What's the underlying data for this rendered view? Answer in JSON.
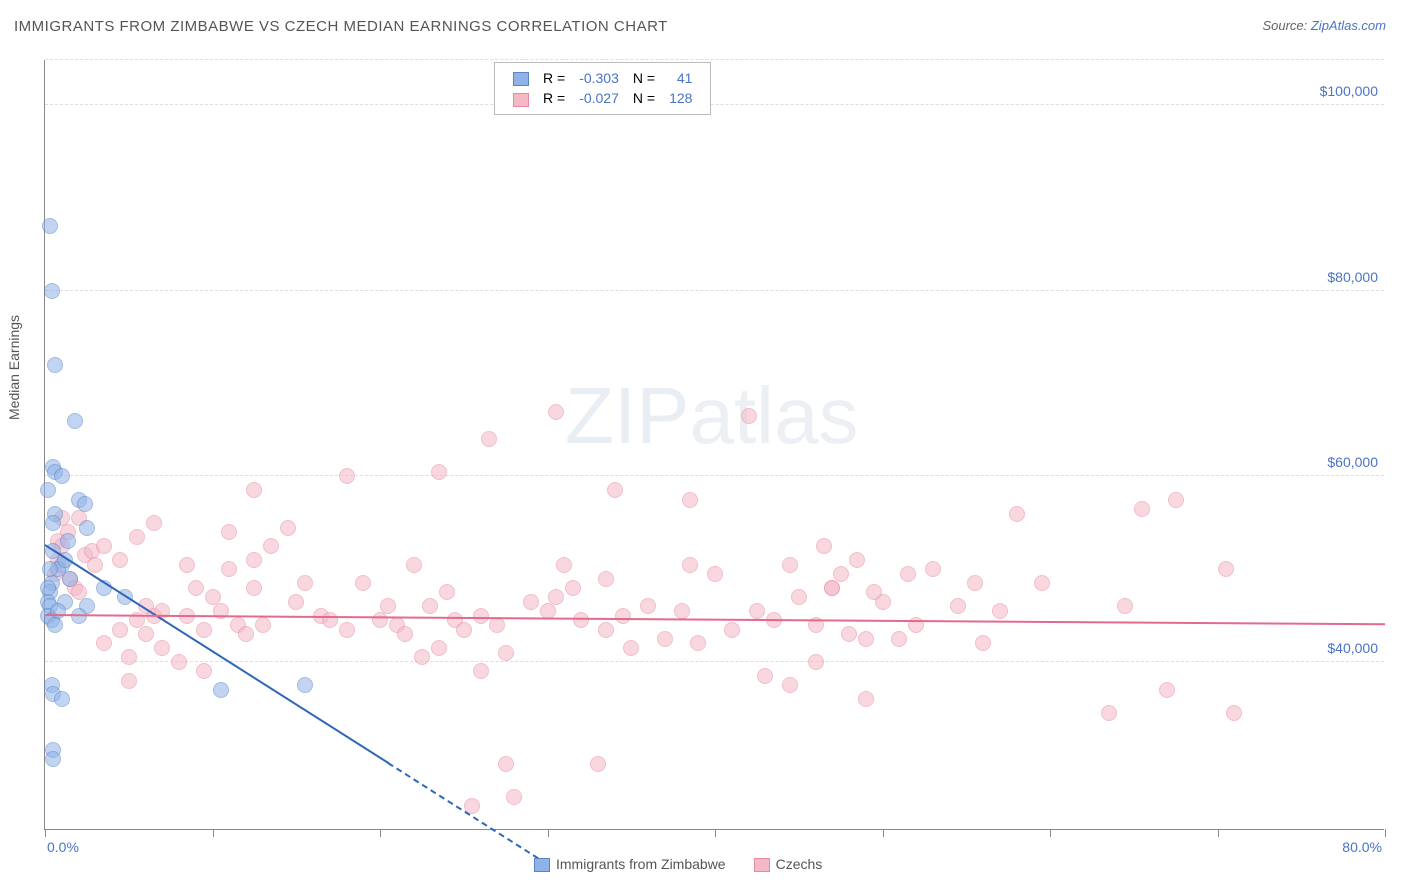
{
  "title": "IMMIGRANTS FROM ZIMBABWE VS CZECH MEDIAN EARNINGS CORRELATION CHART",
  "source_label": "Source: ",
  "source_name": "ZipAtlas.com",
  "watermark_a": "ZIP",
  "watermark_b": "atlas",
  "y_axis_title": "Median Earnings",
  "chart": {
    "type": "scatter",
    "x_range": [
      0,
      80
    ],
    "y_range": [
      22000,
      105000
    ],
    "x_ticks": [
      0,
      10,
      20,
      30,
      40,
      50,
      60,
      70,
      80
    ],
    "x_tick_labels": {
      "0": "0.0%",
      "80": "80.0%"
    },
    "y_gridlines": [
      40000,
      60000,
      80000,
      100000
    ],
    "y_tick_labels": {
      "40000": "$40,000",
      "60000": "$60,000",
      "80000": "$80,000",
      "100000": "$100,000"
    },
    "background": "#ffffff",
    "grid_color": "#dddddd",
    "point_radius": 8,
    "point_opacity": 0.55,
    "series": [
      {
        "name": "Immigrants from Zimbabwe",
        "fill": "#8fb3e8",
        "stroke": "#5a84c4",
        "line_color": "#2f66b8",
        "R": "-0.303",
        "N": "41",
        "trend": {
          "x1": 0,
          "y1": 52500,
          "x2": 20.5,
          "y2": 29000,
          "dash_to_x": 30
        },
        "points": [
          [
            0.3,
            87000
          ],
          [
            0.4,
            80000
          ],
          [
            0.6,
            72000
          ],
          [
            1.8,
            66000
          ],
          [
            0.5,
            61000
          ],
          [
            0.6,
            60500
          ],
          [
            1.0,
            60000
          ],
          [
            2.0,
            57500
          ],
          [
            2.4,
            57000
          ],
          [
            0.6,
            56000
          ],
          [
            2.5,
            54500
          ],
          [
            0.5,
            55000
          ],
          [
            0.5,
            52000
          ],
          [
            1.0,
            50500
          ],
          [
            1.4,
            53000
          ],
          [
            0.8,
            50000
          ],
          [
            0.4,
            48500
          ],
          [
            0.3,
            47500
          ],
          [
            0.2,
            46500
          ],
          [
            1.2,
            46500
          ],
          [
            2.5,
            46000
          ],
          [
            0.3,
            46000
          ],
          [
            0.2,
            45000
          ],
          [
            0.4,
            44500
          ],
          [
            0.8,
            45500
          ],
          [
            0.6,
            44000
          ],
          [
            2.0,
            45000
          ],
          [
            3.5,
            48000
          ],
          [
            4.8,
            47000
          ],
          [
            0.4,
            37500
          ],
          [
            0.5,
            36500
          ],
          [
            0.5,
            30500
          ],
          [
            0.5,
            29500
          ],
          [
            10.5,
            37000
          ],
          [
            15.5,
            37500
          ],
          [
            1.0,
            36000
          ],
          [
            1.2,
            51000
          ],
          [
            1.5,
            49000
          ],
          [
            0.2,
            58500
          ],
          [
            0.2,
            48000
          ],
          [
            0.3,
            50000
          ]
        ]
      },
      {
        "name": "Czechs",
        "fill": "#f4b8c6",
        "stroke": "#e78aa1",
        "line_color": "#e46a8c",
        "R": "-0.027",
        "N": "128",
        "trend": {
          "x1": 0,
          "y1": 45000,
          "x2": 80,
          "y2": 44000
        },
        "points": [
          [
            30.5,
            67000
          ],
          [
            26.5,
            64000
          ],
          [
            42.0,
            66500
          ],
          [
            23.5,
            60500
          ],
          [
            18.0,
            60000
          ],
          [
            12.5,
            58500
          ],
          [
            34.0,
            58500
          ],
          [
            38.5,
            57500
          ],
          [
            67.5,
            57500
          ],
          [
            65.5,
            56500
          ],
          [
            58.0,
            56000
          ],
          [
            1.0,
            55500
          ],
          [
            1.4,
            54000
          ],
          [
            0.8,
            53000
          ],
          [
            1.0,
            52500
          ],
          [
            2.0,
            55500
          ],
          [
            2.4,
            51500
          ],
          [
            0.8,
            51000
          ],
          [
            0.6,
            49500
          ],
          [
            1.5,
            49000
          ],
          [
            1.8,
            48000
          ],
          [
            2.0,
            47500
          ],
          [
            2.8,
            52000
          ],
          [
            3.0,
            50500
          ],
          [
            3.5,
            52500
          ],
          [
            4.5,
            51000
          ],
          [
            5.5,
            53500
          ],
          [
            6.5,
            55000
          ],
          [
            8.5,
            50500
          ],
          [
            9.0,
            48000
          ],
          [
            6.0,
            46000
          ],
          [
            6.5,
            45000
          ],
          [
            7.0,
            45500
          ],
          [
            8.5,
            45000
          ],
          [
            5.5,
            44500
          ],
          [
            5.0,
            40500
          ],
          [
            6.0,
            43000
          ],
          [
            4.5,
            43500
          ],
          [
            3.5,
            42000
          ],
          [
            7.0,
            41500
          ],
          [
            8.0,
            40000
          ],
          [
            11.0,
            50000
          ],
          [
            12.5,
            51000
          ],
          [
            13.5,
            52500
          ],
          [
            14.5,
            54500
          ],
          [
            15.0,
            46500
          ],
          [
            15.5,
            48500
          ],
          [
            16.5,
            45000
          ],
          [
            17.0,
            44500
          ],
          [
            12.5,
            48000
          ],
          [
            13.0,
            44000
          ],
          [
            9.5,
            43500
          ],
          [
            10.0,
            47000
          ],
          [
            10.5,
            45500
          ],
          [
            11.5,
            44000
          ],
          [
            12.0,
            43000
          ],
          [
            18.0,
            43500
          ],
          [
            19.0,
            48500
          ],
          [
            20.0,
            44500
          ],
          [
            20.5,
            46000
          ],
          [
            21.0,
            44000
          ],
          [
            21.5,
            43000
          ],
          [
            22.0,
            50500
          ],
          [
            23.0,
            46000
          ],
          [
            24.0,
            47500
          ],
          [
            24.5,
            44500
          ],
          [
            25.0,
            43500
          ],
          [
            26.0,
            45000
          ],
          [
            27.0,
            44000
          ],
          [
            27.5,
            41000
          ],
          [
            22.5,
            40500
          ],
          [
            23.5,
            41500
          ],
          [
            26.0,
            39000
          ],
          [
            29.0,
            46500
          ],
          [
            30.0,
            45500
          ],
          [
            30.5,
            47000
          ],
          [
            31.5,
            48000
          ],
          [
            32.0,
            44500
          ],
          [
            33.5,
            43500
          ],
          [
            34.5,
            45000
          ],
          [
            35.0,
            41500
          ],
          [
            36.0,
            46000
          ],
          [
            37.0,
            42500
          ],
          [
            38.0,
            45500
          ],
          [
            39.0,
            42000
          ],
          [
            40.0,
            49500
          ],
          [
            41.0,
            43500
          ],
          [
            42.5,
            45500
          ],
          [
            43.0,
            38500
          ],
          [
            43.5,
            44500
          ],
          [
            44.5,
            37500
          ],
          [
            45.0,
            47000
          ],
          [
            46.0,
            40000
          ],
          [
            47.0,
            48000
          ],
          [
            48.0,
            43000
          ],
          [
            48.5,
            51000
          ],
          [
            49.0,
            36000
          ],
          [
            50.0,
            46500
          ],
          [
            51.0,
            42500
          ],
          [
            52.0,
            44000
          ],
          [
            53.0,
            50000
          ],
          [
            54.5,
            46000
          ],
          [
            55.5,
            48500
          ],
          [
            56.0,
            42000
          ],
          [
            57.0,
            45500
          ],
          [
            59.5,
            48500
          ],
          [
            63.5,
            34500
          ],
          [
            64.5,
            46000
          ],
          [
            67.0,
            37000
          ],
          [
            70.5,
            50000
          ],
          [
            71.0,
            34500
          ],
          [
            25.5,
            24500
          ],
          [
            28.0,
            25500
          ],
          [
            27.5,
            29000
          ],
          [
            33.0,
            29000
          ],
          [
            5.0,
            38000
          ],
          [
            9.5,
            39000
          ],
          [
            47.0,
            48000
          ],
          [
            51.5,
            49500
          ],
          [
            47.5,
            49500
          ],
          [
            49.0,
            42500
          ],
          [
            49.5,
            47500
          ],
          [
            46.5,
            52500
          ],
          [
            44.5,
            50500
          ],
          [
            38.5,
            50500
          ],
          [
            46.0,
            44000
          ],
          [
            33.5,
            49000
          ],
          [
            31.0,
            50500
          ],
          [
            11.0,
            54000
          ]
        ]
      }
    ]
  },
  "legend_top": {
    "headers": [
      "R =",
      "N ="
    ]
  },
  "legend_bottom": {
    "items": [
      "Immigrants from Zimbabwe",
      "Czechs"
    ]
  }
}
